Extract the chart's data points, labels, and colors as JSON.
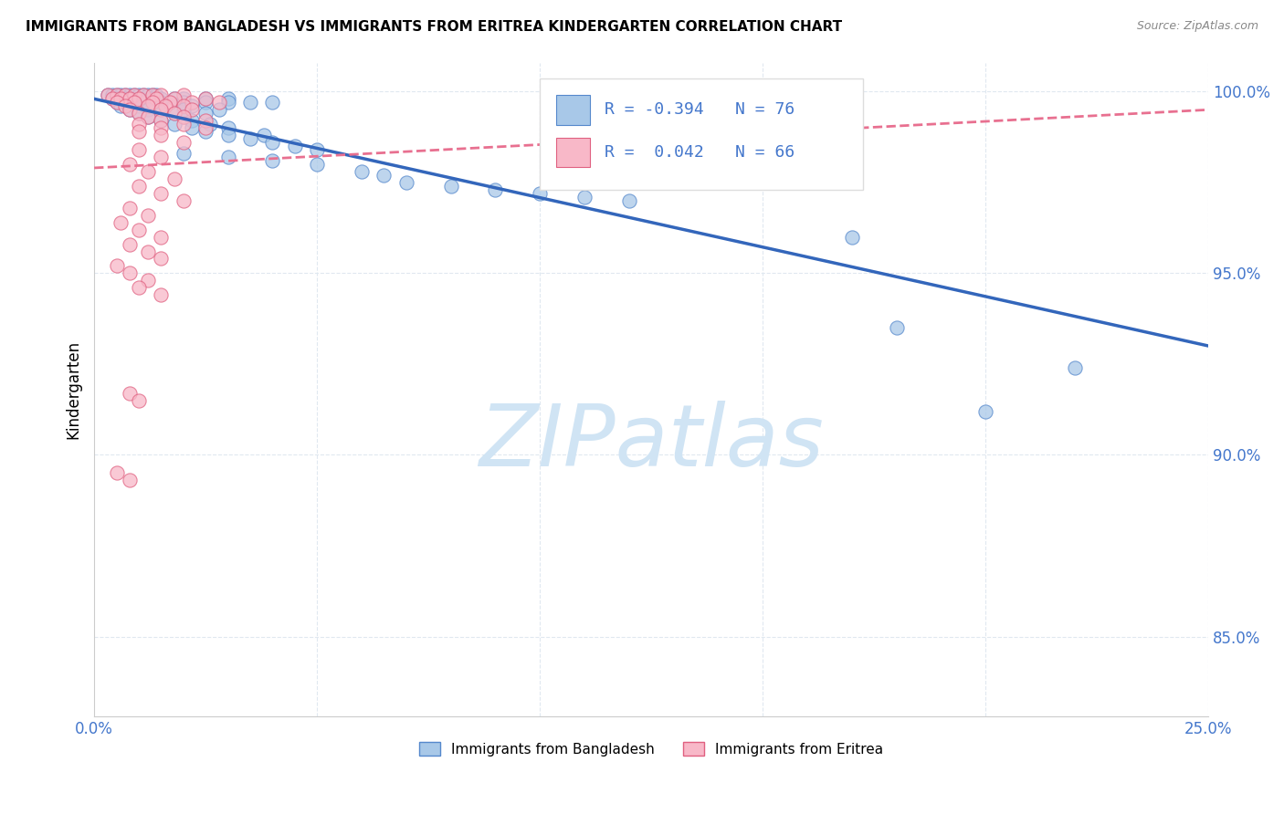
{
  "title": "IMMIGRANTS FROM BANGLADESH VS IMMIGRANTS FROM ERITREA KINDERGARTEN CORRELATION CHART",
  "source": "Source: ZipAtlas.com",
  "ylabel": "Kindergarten",
  "xlim": [
    0.0,
    0.25
  ],
  "ylim": [
    0.828,
    1.008
  ],
  "ytick_vals": [
    0.85,
    0.9,
    0.95,
    1.0
  ],
  "ytick_labels": [
    "85.0%",
    "90.0%",
    "95.0%",
    "100.0%"
  ],
  "xtick_vals": [
    0.0,
    0.05,
    0.1,
    0.15,
    0.2,
    0.25
  ],
  "xtick_labels": [
    "0.0%",
    "",
    "",
    "",
    "",
    "25.0%"
  ],
  "legend_label_blue": "Immigrants from Bangladesh",
  "legend_label_pink": "Immigrants from Eritrea",
  "legend_R_blue": "R = -0.394",
  "legend_N_blue": "N = 76",
  "legend_R_pink": "R =  0.042",
  "legend_N_pink": "N = 66",
  "blue_scatter_color": "#A8C8E8",
  "blue_edge_color": "#5588CC",
  "pink_scatter_color": "#F8B8C8",
  "pink_edge_color": "#E06080",
  "trendline_blue_color": "#3366BB",
  "trendline_pink_color": "#E87090",
  "watermark_text": "ZIPatlas",
  "watermark_color": "#D0E4F4",
  "grid_color": "#E0E8F0",
  "axis_label_color": "#4477CC",
  "blue_scatter": [
    [
      0.003,
      0.999
    ],
    [
      0.004,
      0.999
    ],
    [
      0.005,
      0.999
    ],
    [
      0.006,
      0.999
    ],
    [
      0.007,
      0.999
    ],
    [
      0.008,
      0.999
    ],
    [
      0.009,
      0.999
    ],
    [
      0.01,
      0.999
    ],
    [
      0.011,
      0.999
    ],
    [
      0.012,
      0.999
    ],
    [
      0.013,
      0.999
    ],
    [
      0.014,
      0.999
    ],
    [
      0.004,
      0.998
    ],
    [
      0.005,
      0.998
    ],
    [
      0.006,
      0.998
    ],
    [
      0.007,
      0.998
    ],
    [
      0.008,
      0.998
    ],
    [
      0.01,
      0.998
    ],
    [
      0.013,
      0.998
    ],
    [
      0.015,
      0.998
    ],
    [
      0.018,
      0.998
    ],
    [
      0.02,
      0.998
    ],
    [
      0.025,
      0.998
    ],
    [
      0.03,
      0.998
    ],
    [
      0.005,
      0.997
    ],
    [
      0.007,
      0.997
    ],
    [
      0.009,
      0.997
    ],
    [
      0.011,
      0.997
    ],
    [
      0.015,
      0.997
    ],
    [
      0.02,
      0.997
    ],
    [
      0.025,
      0.997
    ],
    [
      0.03,
      0.997
    ],
    [
      0.035,
      0.997
    ],
    [
      0.04,
      0.997
    ],
    [
      0.006,
      0.996
    ],
    [
      0.01,
      0.996
    ],
    [
      0.015,
      0.996
    ],
    [
      0.022,
      0.996
    ],
    [
      0.008,
      0.995
    ],
    [
      0.012,
      0.995
    ],
    [
      0.02,
      0.995
    ],
    [
      0.028,
      0.995
    ],
    [
      0.01,
      0.994
    ],
    [
      0.018,
      0.994
    ],
    [
      0.025,
      0.994
    ],
    [
      0.012,
      0.993
    ],
    [
      0.02,
      0.993
    ],
    [
      0.015,
      0.992
    ],
    [
      0.022,
      0.992
    ],
    [
      0.018,
      0.991
    ],
    [
      0.026,
      0.991
    ],
    [
      0.022,
      0.99
    ],
    [
      0.03,
      0.99
    ],
    [
      0.025,
      0.989
    ],
    [
      0.03,
      0.988
    ],
    [
      0.038,
      0.988
    ],
    [
      0.035,
      0.987
    ],
    [
      0.04,
      0.986
    ],
    [
      0.045,
      0.985
    ],
    [
      0.05,
      0.984
    ],
    [
      0.02,
      0.983
    ],
    [
      0.03,
      0.982
    ],
    [
      0.04,
      0.981
    ],
    [
      0.05,
      0.98
    ],
    [
      0.06,
      0.978
    ],
    [
      0.065,
      0.977
    ],
    [
      0.07,
      0.975
    ],
    [
      0.08,
      0.974
    ],
    [
      0.09,
      0.973
    ],
    [
      0.1,
      0.972
    ],
    [
      0.11,
      0.971
    ],
    [
      0.12,
      0.97
    ],
    [
      0.17,
      0.96
    ],
    [
      0.18,
      0.935
    ],
    [
      0.2,
      0.912
    ],
    [
      0.22,
      0.924
    ]
  ],
  "pink_scatter": [
    [
      0.003,
      0.999
    ],
    [
      0.005,
      0.999
    ],
    [
      0.007,
      0.999
    ],
    [
      0.009,
      0.999
    ],
    [
      0.011,
      0.999
    ],
    [
      0.013,
      0.999
    ],
    [
      0.015,
      0.999
    ],
    [
      0.02,
      0.999
    ],
    [
      0.004,
      0.998
    ],
    [
      0.006,
      0.998
    ],
    [
      0.008,
      0.998
    ],
    [
      0.01,
      0.998
    ],
    [
      0.014,
      0.998
    ],
    [
      0.018,
      0.998
    ],
    [
      0.025,
      0.998
    ],
    [
      0.005,
      0.997
    ],
    [
      0.009,
      0.997
    ],
    [
      0.013,
      0.997
    ],
    [
      0.017,
      0.997
    ],
    [
      0.022,
      0.997
    ],
    [
      0.028,
      0.997
    ],
    [
      0.007,
      0.996
    ],
    [
      0.012,
      0.996
    ],
    [
      0.016,
      0.996
    ],
    [
      0.02,
      0.996
    ],
    [
      0.008,
      0.995
    ],
    [
      0.015,
      0.995
    ],
    [
      0.022,
      0.995
    ],
    [
      0.01,
      0.994
    ],
    [
      0.018,
      0.994
    ],
    [
      0.012,
      0.993
    ],
    [
      0.02,
      0.993
    ],
    [
      0.015,
      0.992
    ],
    [
      0.025,
      0.992
    ],
    [
      0.01,
      0.991
    ],
    [
      0.02,
      0.991
    ],
    [
      0.015,
      0.99
    ],
    [
      0.025,
      0.99
    ],
    [
      0.01,
      0.989
    ],
    [
      0.015,
      0.988
    ],
    [
      0.02,
      0.986
    ],
    [
      0.01,
      0.984
    ],
    [
      0.015,
      0.982
    ],
    [
      0.008,
      0.98
    ],
    [
      0.012,
      0.978
    ],
    [
      0.018,
      0.976
    ],
    [
      0.01,
      0.974
    ],
    [
      0.015,
      0.972
    ],
    [
      0.02,
      0.97
    ],
    [
      0.008,
      0.968
    ],
    [
      0.012,
      0.966
    ],
    [
      0.006,
      0.964
    ],
    [
      0.01,
      0.962
    ],
    [
      0.015,
      0.96
    ],
    [
      0.008,
      0.958
    ],
    [
      0.012,
      0.956
    ],
    [
      0.015,
      0.954
    ],
    [
      0.005,
      0.952
    ],
    [
      0.008,
      0.95
    ],
    [
      0.012,
      0.948
    ],
    [
      0.01,
      0.946
    ],
    [
      0.015,
      0.944
    ],
    [
      0.008,
      0.917
    ],
    [
      0.01,
      0.915
    ],
    [
      0.005,
      0.895
    ],
    [
      0.008,
      0.893
    ]
  ],
  "trendline_blue_x0": 0.0,
  "trendline_blue_y0": 0.998,
  "trendline_blue_x1": 0.25,
  "trendline_blue_y1": 0.93,
  "trendline_pink_x0": 0.0,
  "trendline_pink_y0": 0.979,
  "trendline_pink_x1": 0.25,
  "trendline_pink_y1": 0.995
}
